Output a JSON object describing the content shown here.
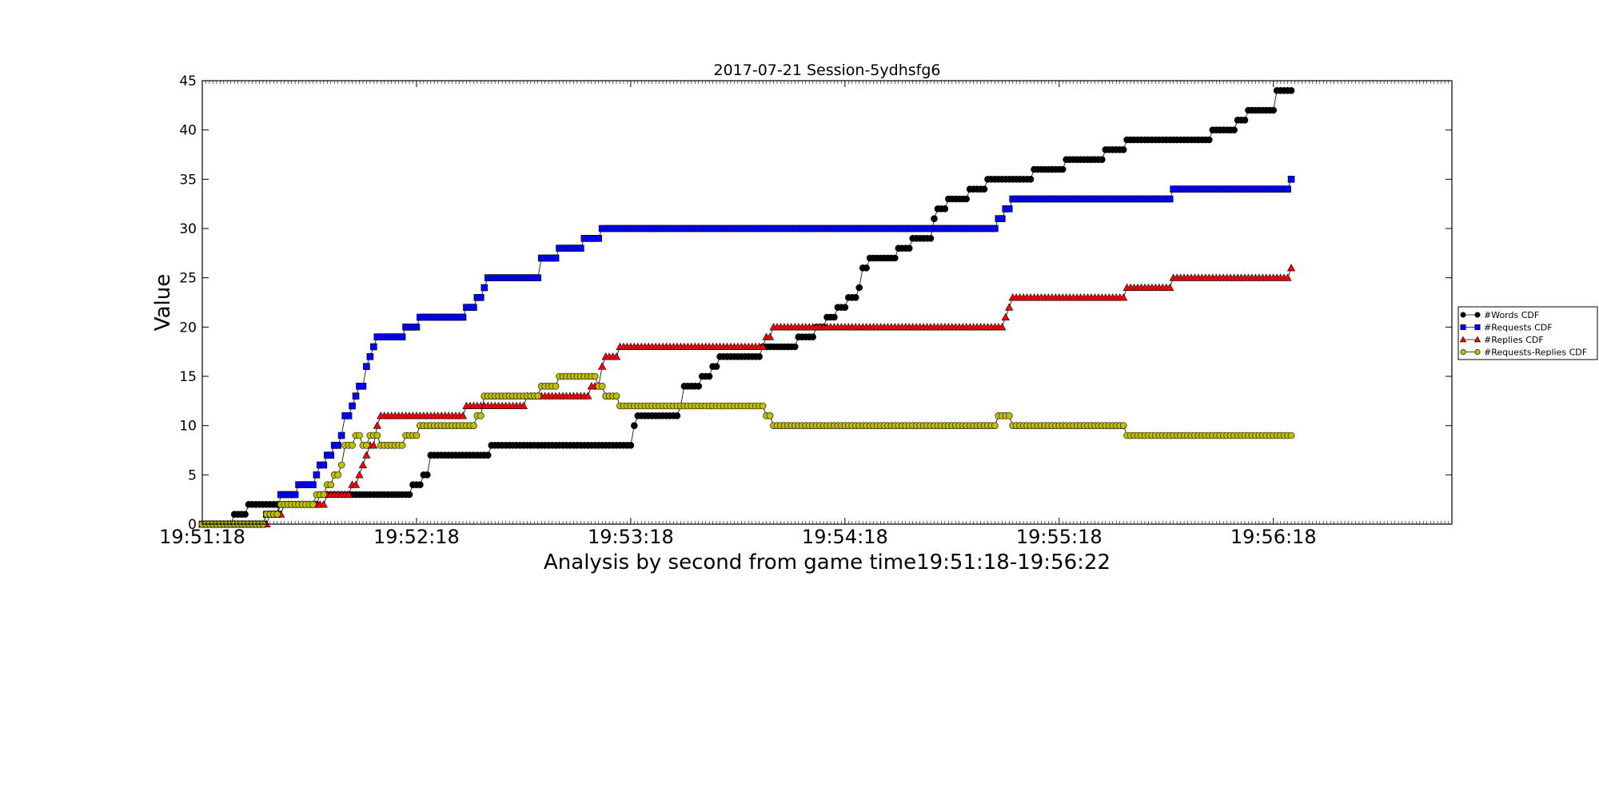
{
  "chart_data": {
    "type": "line",
    "title": "2017-07-21 Session-5ydhsfg6",
    "xlabel": "Analysis by second from game time19:51:18-19:56:22",
    "ylabel": "Value",
    "x_start_time": "19:51:18",
    "x_end_time": "19:56:22",
    "xlim_seconds": [
      0,
      350
    ],
    "ylim": [
      0,
      45
    ],
    "yticks": [
      0,
      5,
      10,
      15,
      20,
      25,
      30,
      35,
      40,
      45
    ],
    "xticks": [
      {
        "t": 0,
        "label": "19:51:18"
      },
      {
        "t": 60,
        "label": "19:52:18"
      },
      {
        "t": 120,
        "label": "19:53:18"
      },
      {
        "t": 180,
        "label": "19:54:18"
      },
      {
        "t": 240,
        "label": "19:55:18"
      },
      {
        "t": 300,
        "label": "19:56:18"
      }
    ],
    "grid": false,
    "legend_position": "right",
    "series": [
      {
        "name": "#Words CDF",
        "marker": "circle",
        "color": "#000000",
        "steps": [
          [
            0,
            0
          ],
          [
            9,
            1
          ],
          [
            13,
            2
          ],
          [
            33,
            3
          ],
          [
            59,
            4
          ],
          [
            62,
            5
          ],
          [
            64,
            7
          ],
          [
            81,
            8
          ],
          [
            121,
            10
          ],
          [
            122,
            11
          ],
          [
            134,
            12
          ],
          [
            135,
            14
          ],
          [
            140,
            15
          ],
          [
            143,
            16
          ],
          [
            145,
            17
          ],
          [
            157,
            18
          ],
          [
            167,
            19
          ],
          [
            172,
            20
          ],
          [
            175,
            21
          ],
          [
            178,
            22
          ],
          [
            181,
            23
          ],
          [
            184,
            24
          ],
          [
            185,
            26
          ],
          [
            187,
            27
          ],
          [
            195,
            28
          ],
          [
            199,
            29
          ],
          [
            205,
            31
          ],
          [
            206,
            32
          ],
          [
            209,
            33
          ],
          [
            215,
            34
          ],
          [
            220,
            35
          ],
          [
            233,
            36
          ],
          [
            242,
            37
          ],
          [
            253,
            38
          ],
          [
            259,
            39
          ],
          [
            283,
            40
          ],
          [
            290,
            41
          ],
          [
            293,
            42
          ],
          [
            301,
            44
          ],
          [
            310,
            45
          ]
        ],
        "end": 305
      },
      {
        "name": "#Requests CDF",
        "marker": "square",
        "color": "#0000ff",
        "steps": [
          [
            0,
            0
          ],
          [
            18,
            1
          ],
          [
            22,
            3
          ],
          [
            27,
            4
          ],
          [
            32,
            5
          ],
          [
            33,
            6
          ],
          [
            35,
            7
          ],
          [
            37,
            8
          ],
          [
            39,
            9
          ],
          [
            40,
            11
          ],
          [
            42,
            12
          ],
          [
            43,
            13
          ],
          [
            44,
            14
          ],
          [
            46,
            16
          ],
          [
            47,
            17
          ],
          [
            48,
            18
          ],
          [
            49,
            19
          ],
          [
            57,
            20
          ],
          [
            61,
            21
          ],
          [
            74,
            22
          ],
          [
            77,
            23
          ],
          [
            79,
            24
          ],
          [
            80,
            25
          ],
          [
            95,
            27
          ],
          [
            100,
            28
          ],
          [
            107,
            29
          ],
          [
            112,
            30
          ],
          [
            223,
            31
          ],
          [
            225,
            32
          ],
          [
            227,
            33
          ],
          [
            272,
            34
          ],
          [
            305,
            35
          ]
        ],
        "end": 305
      },
      {
        "name": "#Replies CDF",
        "marker": "triangle",
        "color": "#ff0000",
        "steps": [
          [
            0,
            0
          ],
          [
            19,
            1
          ],
          [
            23,
            2
          ],
          [
            35,
            3
          ],
          [
            42,
            4
          ],
          [
            44,
            5
          ],
          [
            45,
            6
          ],
          [
            46,
            7
          ],
          [
            47,
            8
          ],
          [
            49,
            10
          ],
          [
            50,
            11
          ],
          [
            74,
            12
          ],
          [
            91,
            13
          ],
          [
            109,
            14
          ],
          [
            112,
            16
          ],
          [
            113,
            17
          ],
          [
            117,
            18
          ],
          [
            158,
            19
          ],
          [
            160,
            20
          ],
          [
            225,
            21
          ],
          [
            226,
            22
          ],
          [
            227,
            23
          ],
          [
            259,
            24
          ],
          [
            272,
            25
          ],
          [
            305,
            26
          ]
        ],
        "end": 305
      },
      {
        "name": "#Requests-Replies CDF",
        "marker": "circle",
        "color": "#bfbf00",
        "steps": [
          [
            0,
            0
          ],
          [
            18,
            1
          ],
          [
            22,
            2
          ],
          [
            32,
            3
          ],
          [
            35,
            4
          ],
          [
            37,
            5
          ],
          [
            39,
            6
          ],
          [
            40,
            8
          ],
          [
            43,
            9
          ],
          [
            45,
            8
          ],
          [
            47,
            9
          ],
          [
            50,
            8
          ],
          [
            57,
            9
          ],
          [
            61,
            10
          ],
          [
            77,
            11
          ],
          [
            79,
            13
          ],
          [
            95,
            14
          ],
          [
            100,
            15
          ],
          [
            111,
            14
          ],
          [
            113,
            13
          ],
          [
            117,
            12
          ],
          [
            158,
            11
          ],
          [
            160,
            10
          ],
          [
            223,
            11
          ],
          [
            227,
            10
          ],
          [
            259,
            9
          ]
        ],
        "end": 305
      }
    ]
  }
}
